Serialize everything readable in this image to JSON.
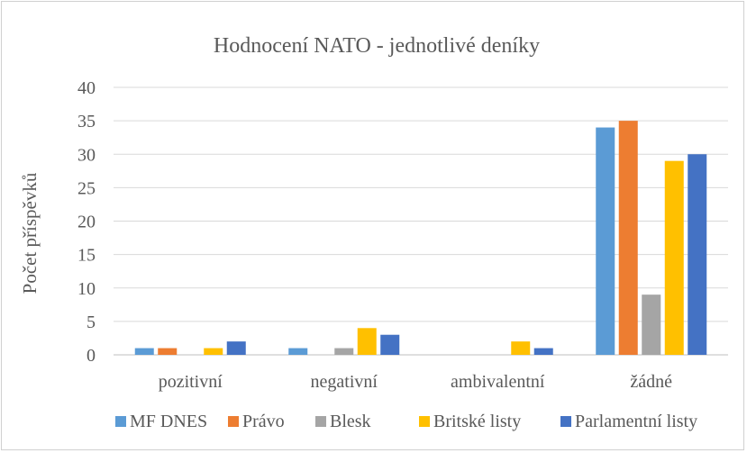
{
  "chart_data": {
    "type": "bar",
    "title": "Hodnocení NATO - jednotlivé deníky",
    "xlabel": "",
    "ylabel": "Počet příspěvků",
    "ylim": [
      0,
      40
    ],
    "yticks": [
      0,
      5,
      10,
      15,
      20,
      25,
      30,
      35,
      40
    ],
    "grid": true,
    "legend_position": "bottom",
    "categories": [
      "pozitivní",
      "negativní",
      "ambivalentní",
      "žádné"
    ],
    "series": [
      {
        "name": "MF DNES",
        "color": "#5B9BD5",
        "values": [
          1,
          1,
          0,
          34
        ]
      },
      {
        "name": "Právo",
        "color": "#ED7D31",
        "values": [
          1,
          0,
          0,
          35
        ]
      },
      {
        "name": "Blesk",
        "color": "#A5A5A5",
        "values": [
          0,
          1,
          0,
          9
        ]
      },
      {
        "name": "Britské listy",
        "color": "#FFC000",
        "values": [
          1,
          4,
          2,
          29
        ]
      },
      {
        "name": "Parlamentní listy",
        "color": "#4472C4",
        "values": [
          2,
          3,
          1,
          30
        ]
      }
    ]
  }
}
